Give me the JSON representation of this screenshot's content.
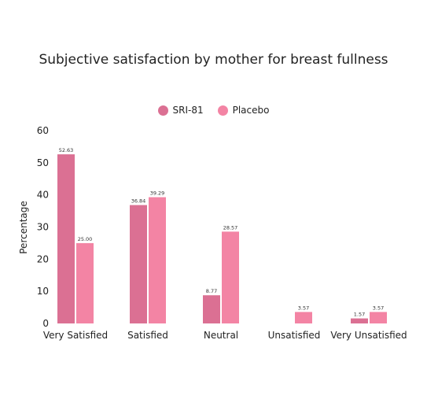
{
  "chart_data": {
    "type": "bar",
    "title": "Subjective satisfaction by mother for breast fullness",
    "xlabel": "",
    "ylabel": "Percentage",
    "ylim": [
      0,
      60
    ],
    "yticks": [
      0,
      10,
      20,
      30,
      40,
      50,
      60
    ],
    "grid": false,
    "legend_position": "top-center",
    "categories": [
      "Very Satisfied",
      "Satisfied",
      "Neutral",
      "Unsatisfied",
      "Very Unsatisfied"
    ],
    "series": [
      {
        "name": "SRI-81",
        "color": "#db7093",
        "values": [
          52.63,
          36.84,
          8.77,
          null,
          1.57
        ],
        "labels": [
          "52.63",
          "36.84",
          "8.77",
          "",
          "1.57"
        ]
      },
      {
        "name": "Placebo",
        "color": "#f384a4",
        "values": [
          25.0,
          39.29,
          28.57,
          3.57,
          3.57
        ],
        "labels": [
          "25.00",
          "39.29",
          "28.57",
          "3.57",
          "3.57"
        ]
      }
    ]
  }
}
